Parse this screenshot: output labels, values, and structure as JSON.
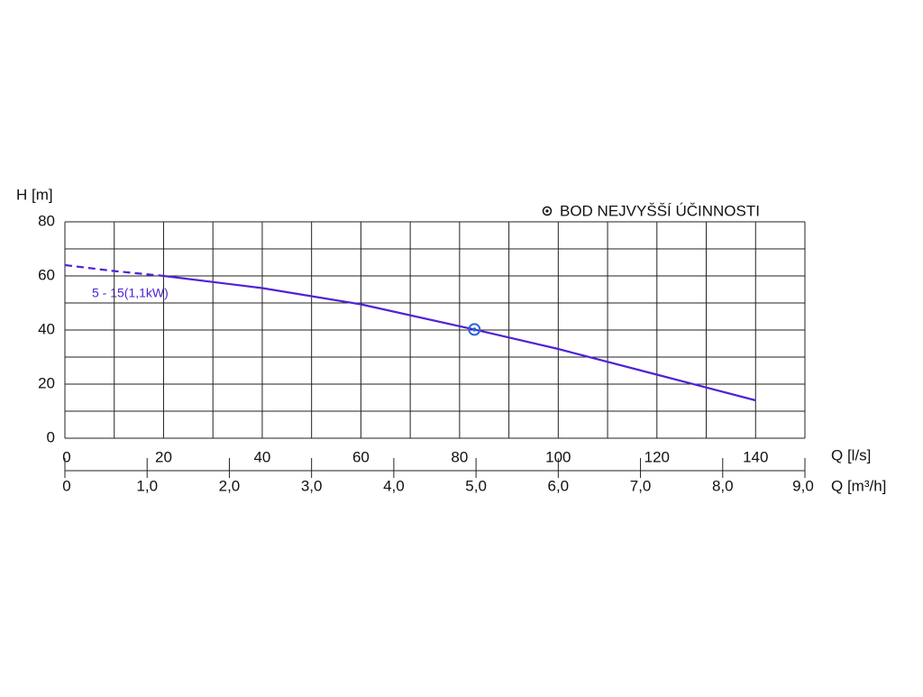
{
  "chart_data": {
    "type": "line",
    "ylabel": "H [m]",
    "xlabel": "Q [l/s]",
    "x2label": "Q [m³/h]",
    "xlim": [
      0,
      150
    ],
    "xticks": [
      0,
      20,
      40,
      60,
      80,
      100,
      120,
      140
    ],
    "xminor": [
      10,
      30,
      50,
      70,
      90,
      110,
      130,
      150
    ],
    "x2lim": [
      0,
      9
    ],
    "x2ticks": [
      0,
      {
        "value": 1,
        "label": "1,0"
      },
      {
        "value": 2,
        "label": "2,0"
      },
      {
        "value": 3,
        "label": "3,0"
      },
      {
        "value": 4,
        "label": "4,0"
      },
      {
        "value": 5,
        "label": "5,0"
      },
      {
        "value": 6,
        "label": "6,0"
      },
      {
        "value": 7,
        "label": "7,0"
      },
      {
        "value": 8,
        "label": "8,0"
      },
      {
        "value": 9,
        "label": "9,0"
      }
    ],
    "ylim": [
      0,
      80
    ],
    "yticks": [
      0,
      20,
      40,
      60,
      80
    ],
    "yminor": [
      10,
      30,
      50,
      70
    ],
    "grid": true,
    "series": [
      {
        "color": "#5022d4",
        "dashed": true,
        "x": [
          0,
          10,
          20
        ],
        "values": [
          64,
          61.8,
          60
        ]
      },
      {
        "color": "#5022d4",
        "dashed": false,
        "x": [
          20,
          40,
          60,
          83,
          100,
          120,
          140
        ],
        "values": [
          60,
          55.5,
          49.5,
          40.2,
          33,
          23.5,
          14
        ]
      }
    ],
    "curve_label": "5 - 15(1,1kW)",
    "bep": {
      "label": "BOD NEJVYŠŠÍ ÚČINNOSTI",
      "x": 83,
      "y": 40.2,
      "color": "#2a64d8"
    }
  }
}
